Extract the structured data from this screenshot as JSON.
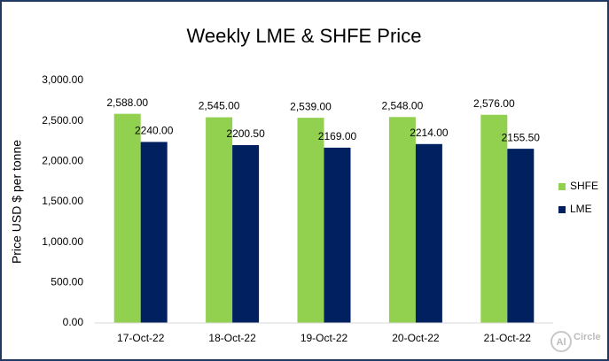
{
  "chart_data": {
    "type": "bar",
    "title": "Weekly LME & SHFE Price",
    "y_label": "Price  USD $ per tonne",
    "categories": [
      "17-Oct-22",
      "18-Oct-22",
      "19-Oct-22",
      "20-Oct-22",
      "21-Oct-22"
    ],
    "series": [
      {
        "name": "SHFE",
        "color": "#92d050",
        "values": [
          2588,
          2545,
          2539,
          2548,
          2576
        ],
        "value_labels": [
          "2,588.00",
          "2,545.00",
          "2,539.00",
          "2,548.00",
          "2,576.00"
        ]
      },
      {
        "name": "LME",
        "color": "#002060",
        "values": [
          2240,
          2200.5,
          2169,
          2214,
          2155.5
        ],
        "value_labels": [
          "2240.00",
          "2200.50",
          "2169.00",
          "2214.00",
          "2155.50"
        ]
      }
    ],
    "ylim": [
      0,
      3000
    ],
    "yticks": [
      {
        "value": 0,
        "label": "0.00"
      },
      {
        "value": 500,
        "label": "500.00"
      },
      {
        "value": 1000,
        "label": "1,000.00"
      },
      {
        "value": 1500,
        "label": "1,500.00"
      },
      {
        "value": 2000,
        "label": "2,000.00"
      },
      {
        "value": 2500,
        "label": "2,500.00"
      },
      {
        "value": 3000,
        "label": "3,000.00"
      }
    ],
    "grid": false,
    "legend": "right",
    "watermark": {
      "mark": "Al",
      "text": "Circle"
    }
  }
}
